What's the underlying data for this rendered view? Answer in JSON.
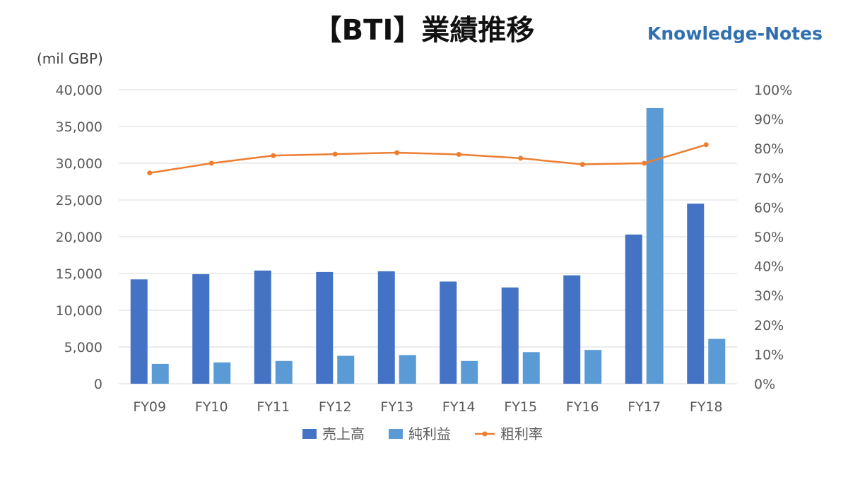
{
  "chart_data": {
    "type": "bar",
    "title": "【BTI】業績推移",
    "brand": "Knowledge-Notes",
    "ylabel": "(mil GBP)",
    "categories": [
      "FY09",
      "FY10",
      "FY11",
      "FY12",
      "FY13",
      "FY14",
      "FY15",
      "FY16",
      "FY17",
      "FY18"
    ],
    "ylim": [
      0,
      40000
    ],
    "y2lim": [
      0,
      1
    ],
    "yticks": [
      "0",
      "5,000",
      "10,000",
      "15,000",
      "20,000",
      "25,000",
      "30,000",
      "35,000",
      "40,000"
    ],
    "y2ticks": [
      "0%",
      "10%",
      "20%",
      "30%",
      "40%",
      "50%",
      "60%",
      "70%",
      "80%",
      "90%",
      "100%"
    ],
    "series": [
      {
        "name": "売上高",
        "type": "bar",
        "axis": "left",
        "color": "#4472c4",
        "values": [
          14200,
          14900,
          15400,
          15200,
          15300,
          13900,
          13100,
          14750,
          20300,
          24500
        ]
      },
      {
        "name": "純利益",
        "type": "bar",
        "axis": "left",
        "color": "#5b9bd5",
        "values": [
          2700,
          2900,
          3100,
          3800,
          3900,
          3100,
          4300,
          4600,
          37500,
          6100
        ]
      },
      {
        "name": "粗利率",
        "type": "line",
        "axis": "right",
        "color": "#ed7d31",
        "values": [
          0.717,
          0.75,
          0.776,
          0.781,
          0.786,
          0.78,
          0.767,
          0.746,
          0.75,
          0.813
        ]
      }
    ],
    "legend": "bottom"
  }
}
